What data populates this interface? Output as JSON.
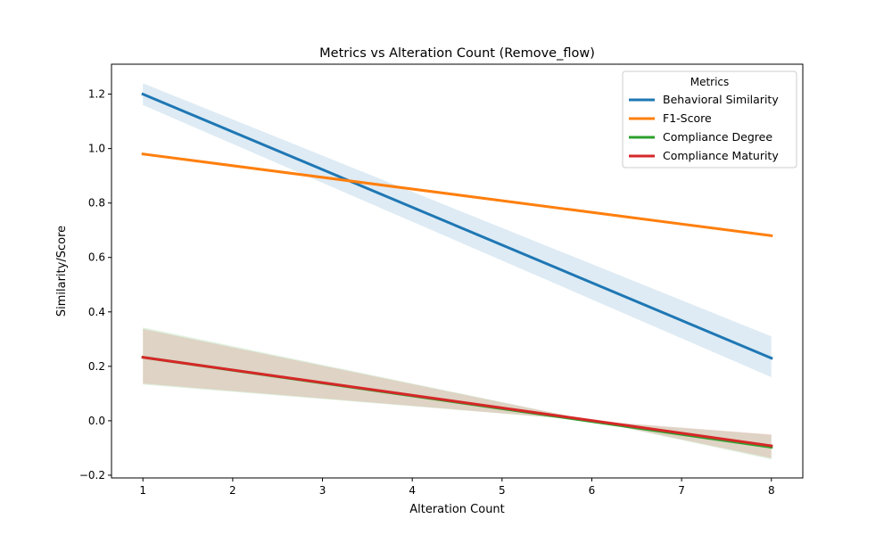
{
  "chart_data": {
    "type": "line",
    "title": "Metrics vs Alteration Count (Remove_flow)",
    "xlabel": "Alteration Count",
    "ylabel": "Similarity/Score",
    "xlim": [
      0.65,
      8.35
    ],
    "ylim": [
      -0.21,
      1.31
    ],
    "xticks": [
      1,
      2,
      3,
      4,
      5,
      6,
      7,
      8
    ],
    "yticks": [
      -0.2,
      0.0,
      0.2,
      0.4,
      0.6,
      0.8,
      1.0,
      1.2
    ],
    "ytick_labels": [
      "−0.2",
      "0.0",
      "0.2",
      "0.4",
      "0.6",
      "0.8",
      "1.0",
      "1.2"
    ],
    "grid": false,
    "legend": {
      "title": "Metrics",
      "placement": "top-right",
      "entries": [
        "Behavioral Similarity",
        "F1-Score",
        "Compliance Degree",
        "Compliance Maturity"
      ]
    },
    "series": [
      {
        "name": "Behavioral Similarity",
        "color": "#1f77b4",
        "x": [
          1,
          8
        ],
        "y": [
          1.2,
          0.23
        ],
        "band": {
          "color": "#1f77b4",
          "x": [
            1,
            8
          ],
          "lower": [
            1.16,
            0.16
          ],
          "upper": [
            1.24,
            0.31
          ]
        }
      },
      {
        "name": "F1-Score",
        "color": "#ff7f0e",
        "x": [
          1,
          8
        ],
        "y": [
          0.98,
          0.68
        ]
      },
      {
        "name": "Compliance Degree",
        "color": "#2ca02c",
        "x": [
          1,
          8
        ],
        "y": [
          0.233,
          -0.097
        ],
        "band": {
          "color": "#2ca02c",
          "x": [
            1,
            6,
            8
          ],
          "lower": [
            0.133,
            0.0,
            -0.142
          ],
          "upper": [
            0.343,
            0.0,
            -0.052
          ]
        }
      },
      {
        "name": "Compliance Maturity",
        "color": "#d62728",
        "x": [
          1,
          8
        ],
        "y": [
          0.233,
          -0.092
        ],
        "band": {
          "color": "#d62728",
          "x": [
            1,
            6,
            8
          ],
          "lower": [
            0.137,
            0.0,
            -0.137
          ],
          "upper": [
            0.337,
            0.0,
            -0.05
          ]
        }
      }
    ]
  }
}
